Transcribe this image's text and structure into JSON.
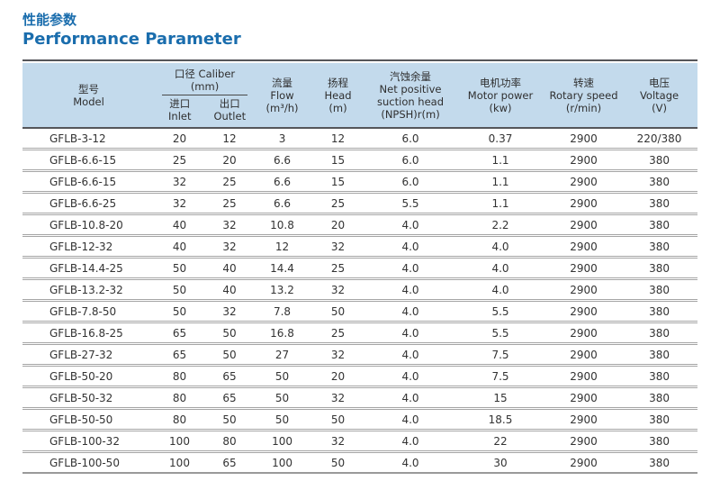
{
  "page": {
    "title_zh": "性能参数",
    "title_en": "Performance Parameter"
  },
  "colors": {
    "title_blue": "#1a6dad",
    "header_bg": "#c3daec",
    "header_border_dark": "#55565a",
    "row_separator": "#a5a5a5",
    "body_text": "#333333"
  },
  "table": {
    "header": {
      "model_zh": "型号",
      "model_en": "Model",
      "caliber_zh_en": "口径 Caliber",
      "caliber_unit": "(mm)",
      "inlet_zh": "进口",
      "inlet_en": "Inlet",
      "outlet_zh": "出口",
      "outlet_en": "Outlet",
      "flow_zh": "流量",
      "flow_en": "Flow",
      "flow_unit": "(m³/h)",
      "head_zh": "扬程",
      "head_en": "Head",
      "head_unit": "(m)",
      "npsh_zh": "汽蚀余量",
      "npsh_en1": "Net positive",
      "npsh_en2": "suction head",
      "npsh_unit": "(NPSH)r(m)",
      "power_zh": "电机功率",
      "power_en": "Motor power",
      "power_unit": "(kw)",
      "speed_zh": "转速",
      "speed_en": "Rotary speed",
      "speed_unit": "(r/min)",
      "voltage_zh": "电压",
      "voltage_en": "Voltage",
      "voltage_unit": "(V)"
    },
    "rows": [
      [
        "GFLB-3-12",
        "20",
        "12",
        "3",
        "12",
        "6.0",
        "0.37",
        "2900",
        "220/380"
      ],
      [
        "GFLB-6.6-15",
        "25",
        "20",
        "6.6",
        "15",
        "6.0",
        "1.1",
        "2900",
        "380"
      ],
      [
        "GFLB-6.6-15",
        "32",
        "25",
        "6.6",
        "15",
        "6.0",
        "1.1",
        "2900",
        "380"
      ],
      [
        "GFLB-6.6-25",
        "32",
        "25",
        "6.6",
        "25",
        "5.5",
        "1.1",
        "2900",
        "380"
      ],
      [
        "GFLB-10.8-20",
        "40",
        "32",
        "10.8",
        "20",
        "4.0",
        "2.2",
        "2900",
        "380"
      ],
      [
        "GFLB-12-32",
        "40",
        "32",
        "12",
        "32",
        "4.0",
        "4.0",
        "2900",
        "380"
      ],
      [
        "GFLB-14.4-25",
        "50",
        "40",
        "14.4",
        "25",
        "4.0",
        "4.0",
        "2900",
        "380"
      ],
      [
        "GFLB-13.2-32",
        "50",
        "40",
        "13.2",
        "32",
        "4.0",
        "4.0",
        "2900",
        "380"
      ],
      [
        "GFLB-7.8-50",
        "50",
        "32",
        "7.8",
        "50",
        "4.0",
        "5.5",
        "2900",
        "380"
      ],
      [
        "GFLB-16.8-25",
        "65",
        "50",
        "16.8",
        "25",
        "4.0",
        "5.5",
        "2900",
        "380"
      ],
      [
        "GFLB-27-32",
        "65",
        "50",
        "27",
        "32",
        "4.0",
        "7.5",
        "2900",
        "380"
      ],
      [
        "GFLB-50-20",
        "80",
        "65",
        "50",
        "20",
        "4.0",
        "7.5",
        "2900",
        "380"
      ],
      [
        "GFLB-50-32",
        "80",
        "65",
        "50",
        "32",
        "4.0",
        "15",
        "2900",
        "380"
      ],
      [
        "GFLB-50-50",
        "80",
        "50",
        "50",
        "50",
        "4.0",
        "18.5",
        "2900",
        "380"
      ],
      [
        "GFLB-100-32",
        "100",
        "80",
        "100",
        "32",
        "4.0",
        "22",
        "2900",
        "380"
      ],
      [
        "GFLB-100-50",
        "100",
        "65",
        "100",
        "50",
        "4.0",
        "30",
        "2900",
        "380"
      ]
    ]
  }
}
